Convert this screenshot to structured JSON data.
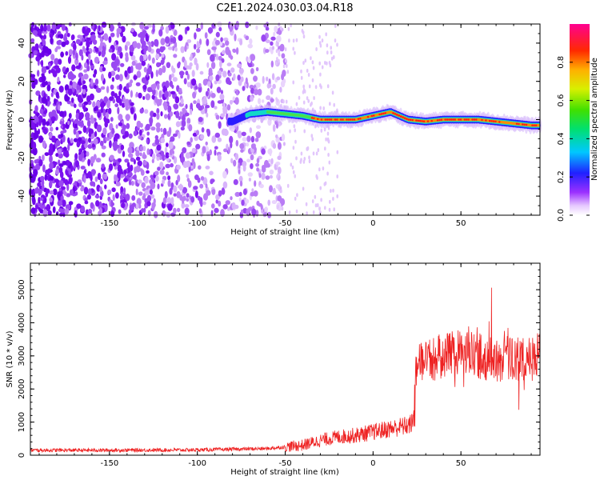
{
  "title": "C2E1.2024.030.03.04.R18",
  "chart_data": [
    {
      "type": "heatmap",
      "name": "spectrogram",
      "xlabel": "Height of straight line (km)",
      "ylabel": "Frequency (Hz)",
      "xlim": [
        -195,
        95
      ],
      "ylim": [
        -50,
        50
      ],
      "xticks": [
        -150,
        -100,
        -50,
        0,
        50
      ],
      "yticks": [
        -40,
        -20,
        0,
        20,
        40
      ],
      "colorbar": {
        "label": "Normalized spectral amplitude",
        "range": [
          0,
          1
        ],
        "ticks": [
          0.0,
          0.2,
          0.4,
          0.6,
          0.8
        ],
        "tick_labels": [
          "0.0",
          "0.2",
          "0.4",
          "0.6",
          "0.8"
        ]
      },
      "ridge": {
        "x": [
          -80,
          -70,
          -60,
          -50,
          -40,
          -30,
          -20,
          -10,
          0,
          10,
          20,
          30,
          40,
          50,
          60,
          70,
          80,
          90,
          95
        ],
        "freq_hz": [
          -1,
          3,
          4,
          3,
          2,
          0,
          0,
          0,
          2,
          4,
          0,
          -1,
          0,
          0,
          0,
          -1,
          -2,
          -3,
          -3
        ]
      },
      "noise_region_x": [
        -195,
        -50
      ],
      "signal_region_x": [
        -55,
        95
      ]
    },
    {
      "type": "line",
      "name": "snr",
      "xlabel": "Height of straight line (km)",
      "ylabel": "SNR (10 * v/v)",
      "xlim": [
        -195,
        95
      ],
      "ylim": [
        0,
        5800
      ],
      "xticks": [
        -150,
        -100,
        -50,
        0,
        50
      ],
      "yticks": [
        0,
        1000,
        2000,
        3000,
        4000,
        5000
      ],
      "series": [
        {
          "name": "SNR",
          "color": "#ee2222",
          "x": [
            -195,
            -150,
            -100,
            -60,
            -50,
            -40,
            -30,
            -20,
            -10,
            0,
            10,
            20,
            23,
            25,
            30,
            40,
            50,
            60,
            70,
            80,
            90,
            95
          ],
          "y": [
            150,
            150,
            160,
            200,
            250,
            300,
            450,
            550,
            600,
            700,
            800,
            900,
            1000,
            3000,
            2800,
            3000,
            3100,
            3000,
            2900,
            2900,
            2900,
            3000
          ]
        }
      ]
    }
  ]
}
